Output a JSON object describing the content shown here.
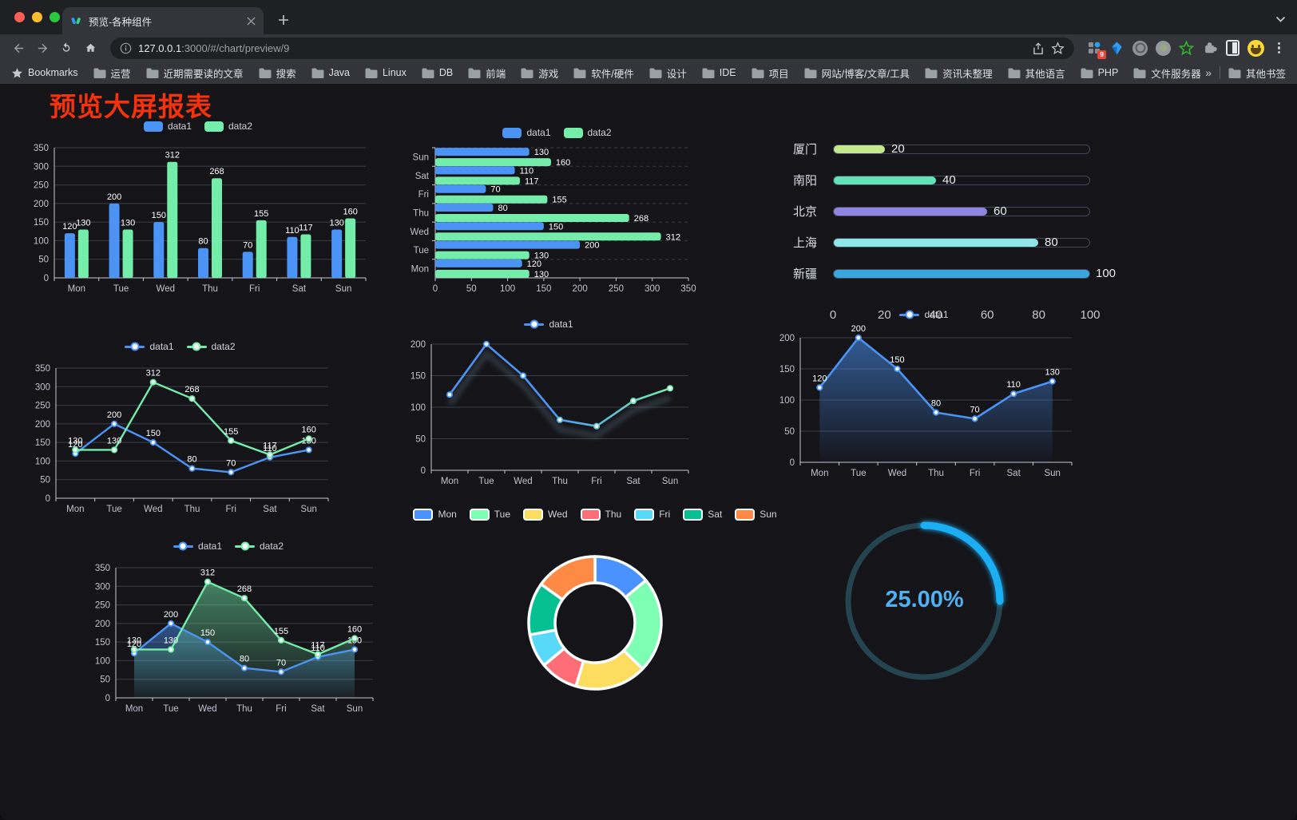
{
  "browser": {
    "tab_title": "预览-各种组件",
    "url_host": "127.0.0.1",
    "url_rest": ":3000/#/chart/preview/9",
    "extension_badge": "9",
    "bookmarks_label": "Bookmarks",
    "bookmarks": [
      "运营",
      "近期需要读的文章",
      "搜索",
      "Java",
      "Linux",
      "DB",
      "前端",
      "游戏",
      "软件/硬件",
      "设计",
      "IDE",
      "项目",
      "网站/博客/文章/工具",
      "资讯未整理",
      "其他语言",
      "PHP",
      "文件服务器"
    ],
    "overflow_chevron": "»",
    "other_bookmarks": "其他书签"
  },
  "page": {
    "title": "预览大屏报表",
    "title_color": "#f5320e",
    "background": "#141419"
  },
  "chart_data": [
    {
      "id": "grouped-bar",
      "type": "bar",
      "categories": [
        "Mon",
        "Tue",
        "Wed",
        "Thu",
        "Fri",
        "Sat",
        "Sun"
      ],
      "series": [
        {
          "name": "data1",
          "color": "#4b94f5",
          "values": [
            120,
            200,
            150,
            80,
            70,
            110,
            130
          ]
        },
        {
          "name": "data2",
          "color": "#74edaa",
          "values": [
            130,
            130,
            312,
            268,
            155,
            117,
            160
          ]
        }
      ],
      "ylim": [
        0,
        350
      ],
      "yticks": [
        0,
        50,
        100,
        150,
        200,
        250,
        300,
        350
      ],
      "legend_position": "top",
      "point_labels": true
    },
    {
      "id": "horizontal-bar",
      "type": "bar-horizontal",
      "categories": [
        "Mon",
        "Tue",
        "Wed",
        "Thu",
        "Fri",
        "Sat",
        "Sun"
      ],
      "display_order_top_to_bottom": [
        "Sun",
        "Sat",
        "Fri",
        "Thu",
        "Wed",
        "Tue",
        "Mon"
      ],
      "series": [
        {
          "name": "data1",
          "color": "#4b94f5",
          "values": [
            120,
            200,
            150,
            80,
            70,
            110,
            130
          ]
        },
        {
          "name": "data2",
          "color": "#74edaa",
          "values": [
            130,
            130,
            312,
            268,
            155,
            117,
            160
          ]
        }
      ],
      "xlim": [
        0,
        350
      ],
      "xticks": [
        0,
        50,
        100,
        150,
        200,
        250,
        300,
        350
      ],
      "legend_position": "top",
      "point_labels": true
    },
    {
      "id": "progress-bars",
      "type": "bar-progress",
      "rows": [
        {
          "label": "厦门",
          "value": 20,
          "color": "#c3e88d"
        },
        {
          "label": "南阳",
          "value": 40,
          "color": "#63e2b7"
        },
        {
          "label": "北京",
          "value": 60,
          "color": "#8f85e0"
        },
        {
          "label": "上海",
          "value": 80,
          "color": "#8ee6e6"
        },
        {
          "label": "新疆",
          "value": 100,
          "color": "#39a7dd"
        }
      ],
      "xlim": [
        0,
        100
      ],
      "xticks": [
        0,
        20,
        40,
        60,
        80,
        100
      ]
    },
    {
      "id": "line-dual",
      "type": "line",
      "categories": [
        "Mon",
        "Tue",
        "Wed",
        "Thu",
        "Fri",
        "Sat",
        "Sun"
      ],
      "series": [
        {
          "name": "data1",
          "color": "#4b94f5",
          "values": [
            120,
            200,
            150,
            80,
            70,
            110,
            130
          ]
        },
        {
          "name": "data2",
          "color": "#74edaa",
          "values": [
            130,
            130,
            312,
            268,
            155,
            117,
            160
          ]
        }
      ],
      "ylim": [
        0,
        350
      ],
      "yticks": [
        0,
        50,
        100,
        150,
        200,
        250,
        300,
        350
      ],
      "legend_position": "top",
      "point_labels": true
    },
    {
      "id": "line-gradient",
      "type": "line",
      "categories": [
        "Mon",
        "Tue",
        "Wed",
        "Thu",
        "Fri",
        "Sat",
        "Sun"
      ],
      "series": [
        {
          "name": "data1",
          "color_gradient": [
            "#4b94f5",
            "#74edaa"
          ],
          "values": [
            120,
            200,
            150,
            80,
            70,
            110,
            130
          ]
        }
      ],
      "ylim": [
        0,
        200
      ],
      "yticks": [
        0,
        50,
        100,
        150,
        200
      ],
      "legend_position": "top",
      "point_labels": false
    },
    {
      "id": "area-single",
      "type": "area",
      "categories": [
        "Mon",
        "Tue",
        "Wed",
        "Thu",
        "Fri",
        "Sat",
        "Sun"
      ],
      "series": [
        {
          "name": "data1",
          "color": "#4b94f5",
          "values": [
            120,
            200,
            150,
            80,
            70,
            110,
            130
          ]
        }
      ],
      "ylim": [
        0,
        200
      ],
      "yticks": [
        0,
        50,
        100,
        150,
        200
      ],
      "legend_position": "top",
      "point_labels": true
    },
    {
      "id": "area-dual",
      "type": "area",
      "categories": [
        "Mon",
        "Tue",
        "Wed",
        "Thu",
        "Fri",
        "Sat",
        "Sun"
      ],
      "series": [
        {
          "name": "data1",
          "color": "#4b94f5",
          "values": [
            120,
            200,
            150,
            80,
            70,
            110,
            130
          ]
        },
        {
          "name": "data2",
          "color": "#74edaa",
          "values": [
            130,
            130,
            312,
            268,
            155,
            117,
            160
          ]
        }
      ],
      "ylim": [
        0,
        350
      ],
      "yticks": [
        0,
        50,
        100,
        150,
        200,
        250,
        300,
        350
      ],
      "legend_position": "top",
      "point_labels": true
    },
    {
      "id": "donut",
      "type": "pie",
      "labels": [
        "Mon",
        "Tue",
        "Wed",
        "Thu",
        "Fri",
        "Sat",
        "Sun"
      ],
      "values": [
        120,
        200,
        150,
        80,
        70,
        110,
        130
      ],
      "colors": [
        "#4992ff",
        "#7cffb2",
        "#fddd60",
        "#ff6e76",
        "#58d9f9",
        "#05c091",
        "#ff8a45"
      ],
      "legend_position": "top"
    },
    {
      "id": "gauge",
      "type": "gauge",
      "percent": 25,
      "center_label": "25.00%",
      "track_color": "#24444f",
      "arc_color": "#1daef5",
      "text_color": "#4fb0f2"
    }
  ]
}
